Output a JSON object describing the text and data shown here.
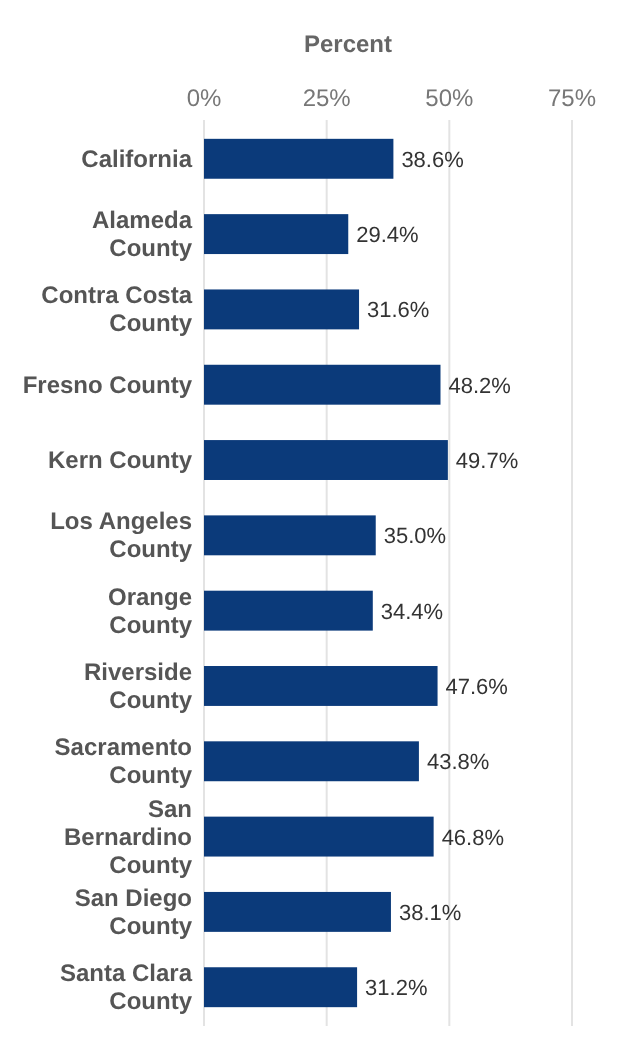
{
  "chart_data": {
    "type": "bar",
    "orientation": "horizontal",
    "xlabel": "Percent",
    "categories": [
      "California",
      "Alameda\nCounty",
      "Contra Costa\nCounty",
      "Fresno County",
      "Kern County",
      "Los Angeles\nCounty",
      "Orange\nCounty",
      "Riverside\nCounty",
      "Sacramento\nCounty",
      "San\nBernardino\nCounty",
      "San Diego\nCounty",
      "Santa Clara\nCounty"
    ],
    "values": [
      38.6,
      29.4,
      31.6,
      48.2,
      49.7,
      35.0,
      34.4,
      47.6,
      43.8,
      46.8,
      38.1,
      31.2
    ],
    "value_labels": [
      "38.6%",
      "29.4%",
      "31.6%",
      "48.2%",
      "49.7%",
      "35.0%",
      "34.4%",
      "47.6%",
      "43.8%",
      "46.8%",
      "38.1%",
      "31.2%"
    ],
    "color": "#0b3a7a",
    "xlim": [
      0,
      75
    ],
    "xticks": [
      {
        "value": 0,
        "label": "0%"
      },
      {
        "value": 25,
        "label": "25%"
      },
      {
        "value": 50,
        "label": "50%"
      },
      {
        "value": 75,
        "label": "75%"
      }
    ],
    "grid": "x"
  }
}
